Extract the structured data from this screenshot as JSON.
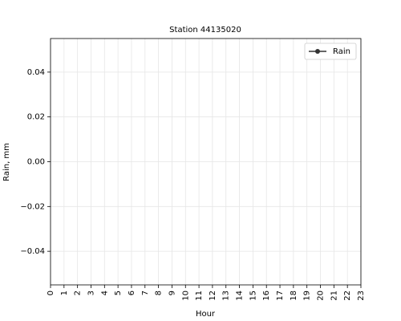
{
  "chart_data": {
    "type": "line",
    "title": "Station 44135020",
    "x_label": "Hour",
    "y_label": "Rain, mm",
    "x": [
      0,
      1,
      2,
      3,
      4,
      5,
      6,
      7,
      8,
      9,
      10,
      11,
      12,
      13,
      14,
      15,
      16,
      17,
      18,
      19,
      20,
      21,
      22,
      23
    ],
    "series": [
      {
        "name": "Rain",
        "color": "#333333",
        "values": [
          null,
          null,
          null,
          null,
          null,
          null,
          null,
          null,
          null,
          null,
          null,
          null,
          null,
          null,
          null,
          null,
          null,
          null,
          null,
          null,
          null,
          null,
          null,
          null
        ]
      }
    ],
    "xlim": [
      0,
      23
    ],
    "xticks": [
      0,
      1,
      2,
      3,
      4,
      5,
      6,
      7,
      8,
      9,
      10,
      11,
      12,
      13,
      14,
      15,
      16,
      17,
      18,
      19,
      20,
      21,
      22,
      23
    ],
    "ylim": [
      -0.055,
      0.055
    ],
    "yticks": [
      {
        "value": -0.04,
        "label": "−0.04"
      },
      {
        "value": -0.02,
        "label": "−0.02"
      },
      {
        "value": 0,
        "label": "0.00"
      },
      0.02,
      0.04
    ],
    "grid": true,
    "legend": "upper right"
  }
}
